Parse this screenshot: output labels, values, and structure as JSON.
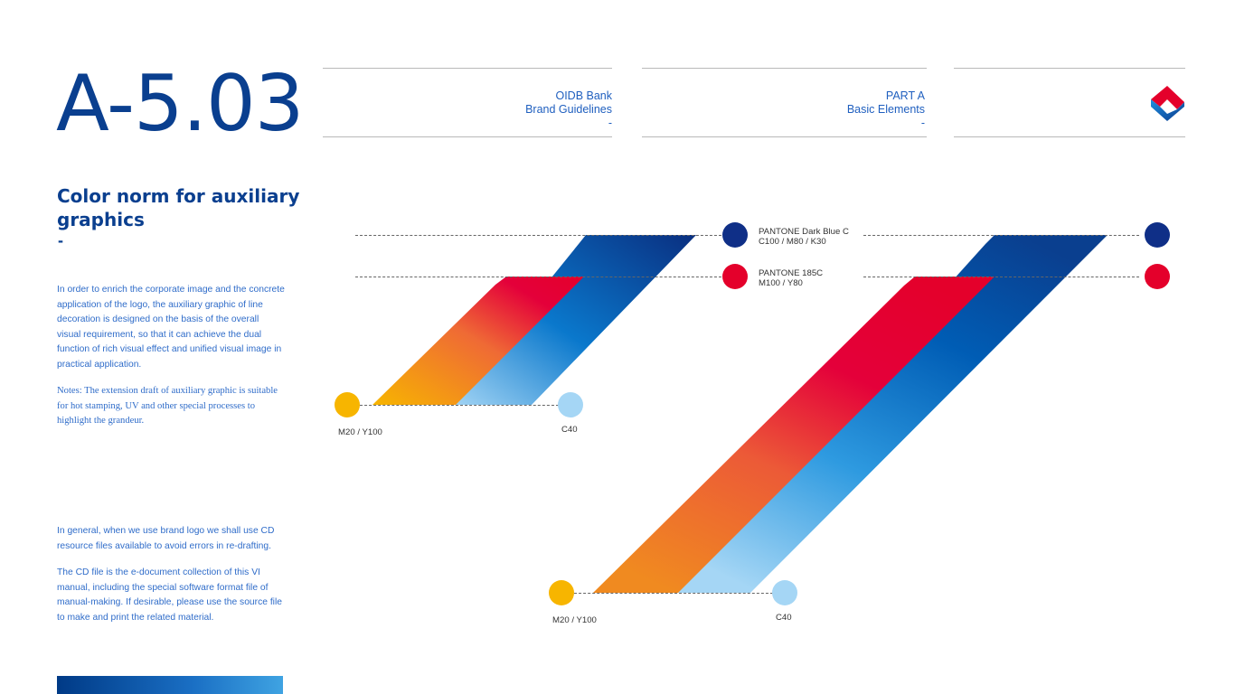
{
  "page_number": "A-5.03",
  "header": {
    "brand": [
      "OIDB Bank",
      "Brand Guidelines",
      "-"
    ],
    "part": [
      "PART A",
      "Basic Elements",
      "-"
    ],
    "logo_icon": "oidb-logo-icon"
  },
  "section": {
    "title": "Color norm for auxiliary graphics",
    "dash": "-",
    "paragraphs": [
      "In order to enrich the corporate image and the concrete application of the logo, the auxiliary graphic of line decoration is designed on the basis of the overall visual requirement, so that it can achieve the dual function of rich visual effect and unified visual image in practical application.",
      "Notes: The extension draft of auxiliary graphic is suitable for hot stamping, UV and other special processes to highlight the grandeur.",
      "In general, when we use brand logo we shall use CD resource files available to avoid errors in re-drafting.",
      "The CD file is the e-document collection of this VI manual, including the special software format file of manual-making. If desirable, please use the source file to make and print the related material."
    ]
  },
  "swatches": {
    "dark_blue": {
      "name": "PANTONE Dark Blue C",
      "values": "C100 / M80 / K30",
      "color": "#0f2f87"
    },
    "red": {
      "name": "PANTONE 185C",
      "values": "M100 / Y80",
      "color": "#e4002b"
    },
    "yellow": {
      "values": "M20 / Y100",
      "color": "#f7b500"
    },
    "light_blue": {
      "values": "C40",
      "color": "#a5d6f5"
    }
  },
  "colors": {
    "accent_blue": "#0a3f8f",
    "text_blue": "#2f6cc9",
    "mid_blue": "#0071c2"
  }
}
